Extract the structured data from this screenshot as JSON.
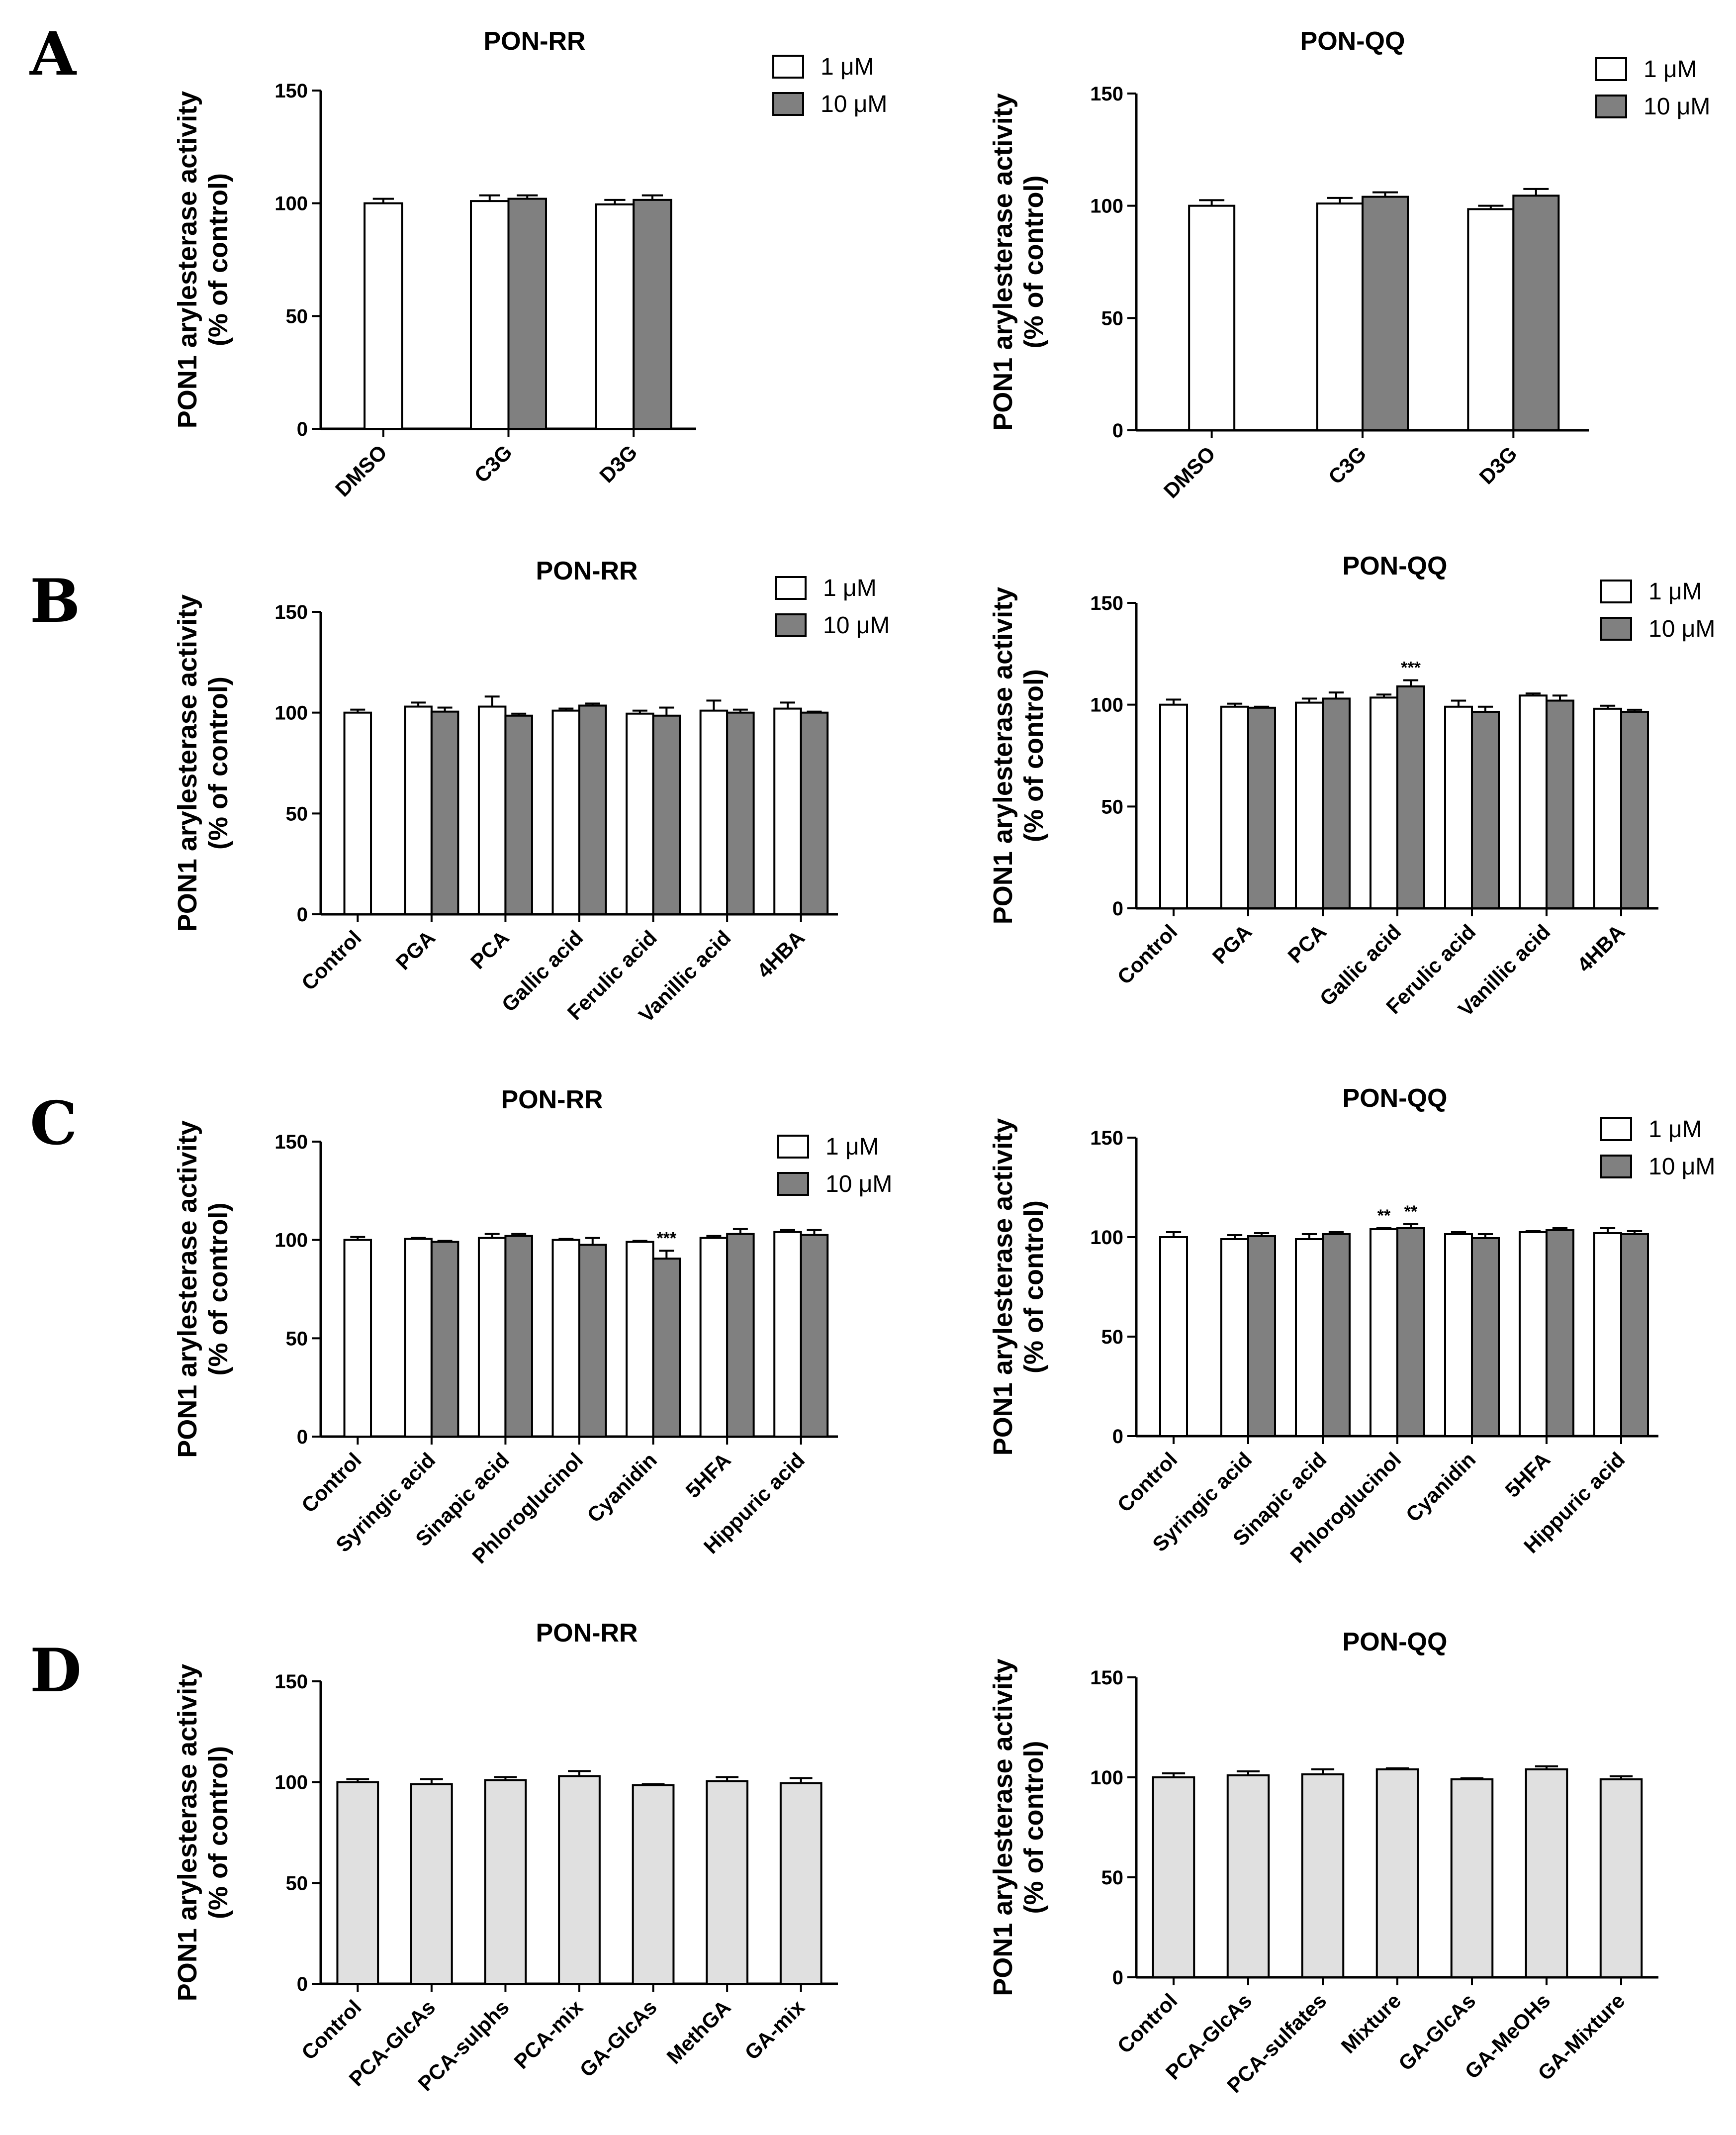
{
  "figure": {
    "panel_letters": [
      "A",
      "B",
      "C",
      "D"
    ],
    "colors": {
      "series_1uM": "#ffffff",
      "series_10uM": "#808080",
      "single": "#e0e0e0",
      "stroke": "#000000"
    }
  },
  "chart_data": [
    {
      "id": "A-RR",
      "panel": "A",
      "type": "bar",
      "title": "PON-RR",
      "ylabel_line1": "PON1 arylesterase activity",
      "ylabel_line2": "(% of control)",
      "ylim": [
        0,
        150
      ],
      "yticks": [
        0,
        50,
        100,
        150
      ],
      "categories": [
        "DMSO",
        "C3G",
        "D3G"
      ],
      "series": [
        {
          "name": "1 μM",
          "values": [
            100,
            101,
            99.5
          ],
          "errors": [
            2,
            2.5,
            2
          ]
        },
        {
          "name": "10 μM",
          "values": [
            null,
            102,
            101.5
          ],
          "errors": [
            null,
            1.5,
            2
          ]
        }
      ],
      "legend": [
        "1 μM",
        "10 μM"
      ],
      "annotations": []
    },
    {
      "id": "A-QQ",
      "panel": "A",
      "type": "bar",
      "title": "PON-QQ",
      "ylabel_line1": "PON1 arylesterase activity",
      "ylabel_line2": "(% of control)",
      "ylim": [
        0,
        150
      ],
      "yticks": [
        0,
        50,
        100,
        150
      ],
      "categories": [
        "DMSO",
        "C3G",
        "D3G"
      ],
      "series": [
        {
          "name": "1 μM",
          "values": [
            100,
            101,
            98.5
          ],
          "errors": [
            2.5,
            2.5,
            1.5
          ]
        },
        {
          "name": "10 μM",
          "values": [
            null,
            104,
            104.5
          ],
          "errors": [
            null,
            2,
            3
          ]
        }
      ],
      "legend": [
        "1 μM",
        "10 μM"
      ],
      "annotations": []
    },
    {
      "id": "B-RR",
      "panel": "B",
      "type": "bar",
      "title": "PON-RR",
      "ylabel_line1": "PON1 arylesterase activity",
      "ylabel_line2": "(% of control)",
      "ylim": [
        0,
        150
      ],
      "yticks": [
        0,
        50,
        100,
        150
      ],
      "categories": [
        "Control",
        "PGA",
        "PCA",
        "Gallic acid",
        "Ferulic acid",
        "Vanillic acid",
        "4HBA"
      ],
      "series": [
        {
          "name": "1 μM",
          "values": [
            100,
            103,
            103,
            101,
            99.5,
            101,
            102
          ],
          "errors": [
            1.5,
            2,
            5,
            1,
            1.5,
            5,
            3
          ]
        },
        {
          "name": "10 μM",
          "values": [
            null,
            100.5,
            98.5,
            103.5,
            98.5,
            100,
            100
          ],
          "errors": [
            null,
            2,
            1,
            1,
            4,
            1.5,
            0.5
          ]
        }
      ],
      "legend": [
        "1 μM",
        "10 μM"
      ],
      "annotations": []
    },
    {
      "id": "B-QQ",
      "panel": "B",
      "type": "bar",
      "title": "PON-QQ",
      "ylabel_line1": "PON1 arylesterase activity",
      "ylabel_line2": "(% of control)",
      "ylim": [
        0,
        150
      ],
      "yticks": [
        0,
        50,
        100,
        150
      ],
      "categories": [
        "Control",
        "PGA",
        "PCA",
        "Gallic acid",
        "Ferulic acid",
        "Vanillic acid",
        "4HBA"
      ],
      "series": [
        {
          "name": "1 μM",
          "values": [
            100,
            99,
            101,
            103.5,
            99,
            104.5,
            98
          ],
          "errors": [
            2.5,
            1.5,
            2,
            1.5,
            3,
            1,
            1.5
          ]
        },
        {
          "name": "10 μM",
          "values": [
            null,
            98.5,
            103,
            109,
            96.5,
            102,
            96.5
          ],
          "errors": [
            null,
            0.5,
            3,
            3,
            2.5,
            2.5,
            1
          ]
        }
      ],
      "legend": [
        "1 μM",
        "10 μM"
      ],
      "annotations": [
        {
          "category": "Gallic acid",
          "series": 1,
          "text": "***"
        }
      ]
    },
    {
      "id": "C-RR",
      "panel": "C",
      "type": "bar",
      "title": "PON-RR",
      "ylabel_line1": "PON1 arylesterase activity",
      "ylabel_line2": "(% of control)",
      "ylim": [
        0,
        150
      ],
      "yticks": [
        0,
        50,
        100,
        150
      ],
      "categories": [
        "Control",
        "Syringic acid",
        "Sinapic acid",
        "Phloroglucinol",
        "Cyanidin",
        "5HFA",
        "Hippuric acid"
      ],
      "series": [
        {
          "name": "1 μM",
          "values": [
            100,
            100.5,
            101,
            100,
            99,
            101,
            104
          ],
          "errors": [
            1.5,
            0.5,
            2,
            0.5,
            0.5,
            1,
            1
          ]
        },
        {
          "name": "10 μM",
          "values": [
            null,
            99,
            102,
            97.5,
            90.5,
            103,
            102.5
          ],
          "errors": [
            null,
            0.5,
            1,
            3.5,
            4,
            2.5,
            2.5
          ]
        }
      ],
      "legend": [
        "1 μM",
        "10 μM"
      ],
      "annotations": [
        {
          "category": "Cyanidin",
          "series": 1,
          "text": "***"
        }
      ]
    },
    {
      "id": "C-QQ",
      "panel": "C",
      "type": "bar",
      "title": "PON-QQ",
      "ylabel_line1": "PON1 arylesterase activity",
      "ylabel_line2": "(% of control)",
      "ylim": [
        0,
        150
      ],
      "yticks": [
        0,
        50,
        100,
        150
      ],
      "categories": [
        "Control",
        "Syringic acid",
        "Sinapic acid",
        "Phloroglucinol",
        "Cyanidin",
        "5HFA",
        "Hippuric acid"
      ],
      "series": [
        {
          "name": "1 μM",
          "values": [
            100,
            99,
            99,
            104,
            101.5,
            102.5,
            102
          ],
          "errors": [
            2.5,
            2,
            2.5,
            0.5,
            1,
            0.5,
            2.5
          ]
        },
        {
          "name": "10 μM",
          "values": [
            null,
            100.5,
            101.5,
            104.5,
            99.5,
            103.5,
            101.5
          ],
          "errors": [
            null,
            1.5,
            1,
            2,
            2,
            1,
            1.5
          ]
        }
      ],
      "legend": [
        "1 μM",
        "10 μM"
      ],
      "annotations": [
        {
          "category": "Phloroglucinol",
          "series": 0,
          "text": "**"
        },
        {
          "category": "Phloroglucinol",
          "series": 1,
          "text": "**"
        }
      ]
    },
    {
      "id": "D-RR",
      "panel": "D",
      "type": "bar",
      "title": "PON-RR",
      "ylabel_line1": "PON1 arylesterase activity",
      "ylabel_line2": "(% of control)",
      "ylim": [
        0,
        150
      ],
      "yticks": [
        0,
        50,
        100,
        150
      ],
      "categories": [
        "Control",
        "PCA-GlcAs",
        "PCA-sulphs",
        "PCA-mix",
        "GA-GlcAs",
        "MethGA",
        "GA-mix"
      ],
      "series": [
        {
          "name": "",
          "values": [
            100,
            99,
            101,
            103,
            98.5,
            100.5,
            99.5
          ],
          "errors": [
            1.5,
            2.5,
            1.5,
            2.5,
            0.5,
            2,
            2.5
          ]
        }
      ],
      "legend": [],
      "annotations": []
    },
    {
      "id": "D-QQ",
      "panel": "D",
      "type": "bar",
      "title": "PON-QQ",
      "ylabel_line1": "PON1 arylesterase activity",
      "ylabel_line2": "(% of control)",
      "ylim": [
        0,
        150
      ],
      "yticks": [
        0,
        50,
        100,
        150
      ],
      "categories": [
        "Control",
        "PCA-GlcAs",
        "PCA-sulfates",
        "Mixture",
        "GA-GlcAs",
        "GA-MeOHs",
        "GA-Mixture"
      ],
      "series": [
        {
          "name": "",
          "values": [
            100,
            101,
            101.5,
            104,
            99,
            104,
            99
          ],
          "errors": [
            2,
            2,
            2.5,
            0.5,
            0.5,
            1.5,
            1.5
          ]
        }
      ],
      "legend": [],
      "annotations": []
    }
  ]
}
